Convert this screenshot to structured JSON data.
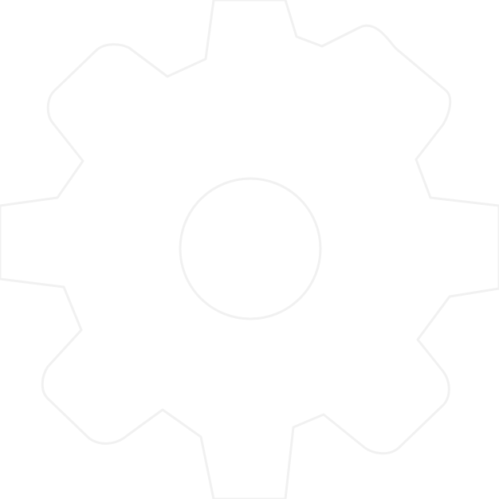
{
  "icon": {
    "name": "gear-icon",
    "description_visible": false
  },
  "colors": {
    "background": "#ffffff",
    "outline": "#f1f1f1"
  }
}
